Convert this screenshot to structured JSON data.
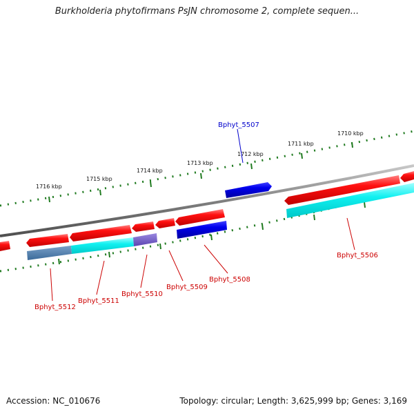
{
  "title": "Burkholderia phytofirmans PsJN chromosome 2, complete sequen...",
  "footer": {
    "accession": "Accession: NC_010676",
    "stats": "Topology: circular; Length: 3,625,999 bp; Genes: 3,169"
  },
  "scale": {
    "tick_labels": [
      "1716 kbp",
      "1715 kbp",
      "1714 kbp",
      "1713 kbp",
      "1712 kbp",
      "1711 kbp",
      "1710 kbp"
    ]
  },
  "genes": [
    {
      "id": "Bphyt_5507",
      "strand": "forward",
      "color": "#0000dd"
    },
    {
      "id": "Bphyt_5506",
      "strand": "reverse",
      "color": "#dd0000"
    },
    {
      "id": "Bphyt_5508",
      "strand": "reverse",
      "color": "#dd0000"
    },
    {
      "id": "Bphyt_5509",
      "strand": "reverse",
      "color": "#dd0000"
    },
    {
      "id": "Bphyt_5510",
      "strand": "reverse",
      "color": "#dd0000"
    },
    {
      "id": "Bphyt_5511",
      "strand": "reverse",
      "color": "#dd0000"
    },
    {
      "id": "Bphyt_5512",
      "strand": "reverse",
      "color": "#dd0000"
    }
  ],
  "colors": {
    "forward_cds": "#ff0000",
    "reverse_cds": "#0000ff",
    "gene_feature": "#00ffff",
    "backbone": "#808080",
    "ticks": "#1f7a1f"
  }
}
